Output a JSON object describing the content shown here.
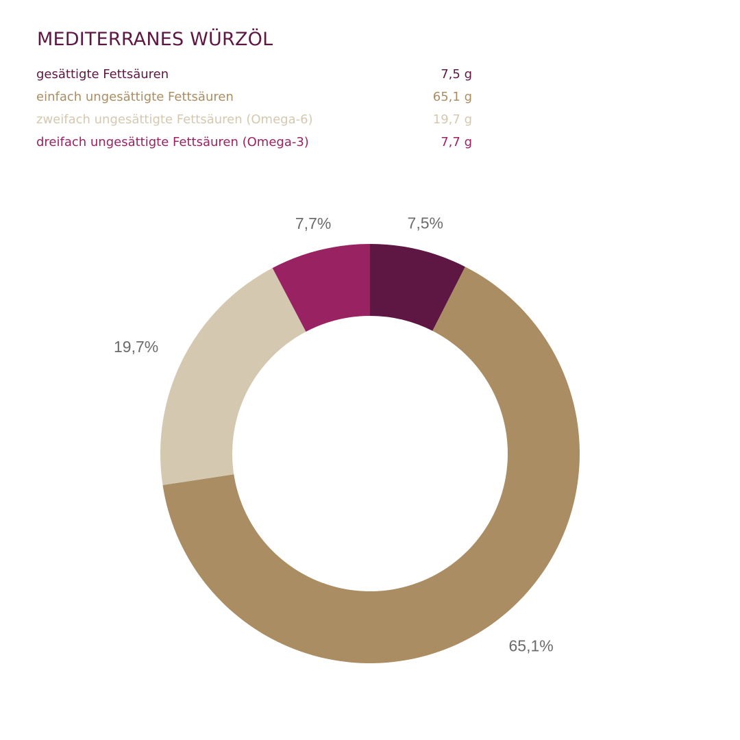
{
  "title": "MEDITERRANES WÜRZÖL",
  "title_color": "#5e1642",
  "chart_data": {
    "type": "pie",
    "variant": "donut",
    "title": "MEDITERRANES WÜRZÖL",
    "start_angle": "top",
    "direction": "clockwise",
    "slices": [
      {
        "name": "gesättigte Fettsäuren",
        "value": 7.5,
        "unit": "g",
        "value_label": "7,5 g",
        "percent_label": "7,5%",
        "color": "#5e1642"
      },
      {
        "name": "einfach ungesättigte Fettsäuren",
        "value": 65.1,
        "unit": "g",
        "value_label": "65,1 g",
        "percent_label": "65,1%",
        "color": "#aa8d62"
      },
      {
        "name": "zweifach ungesättigte Fettsäuren (Omega-6)",
        "value": 19.7,
        "unit": "g",
        "value_label": "19,7 g",
        "percent_label": "19,7%",
        "color": "#d4c8b1"
      },
      {
        "name": "dreifach ungesättigte Fettsäuren (Omega-3)",
        "value": 7.7,
        "unit": "g",
        "value_label": "7,7 g",
        "percent_label": "7,7%",
        "color": "#992262"
      }
    ]
  }
}
